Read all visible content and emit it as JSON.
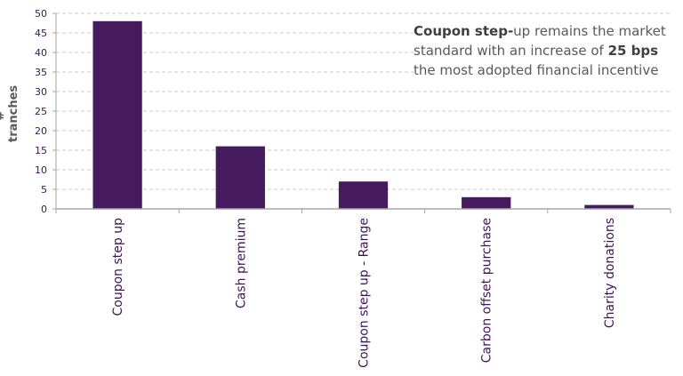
{
  "chart_data": {
    "type": "bar",
    "title": "",
    "xlabel": "",
    "ylabel": "# tranches",
    "categories": [
      "Coupon step up",
      "Cash premium",
      "Coupon step up - Range",
      "Carbon offset purchase",
      "Charity donations"
    ],
    "values": [
      48,
      16,
      7,
      3,
      1
    ],
    "ylim": [
      0,
      50
    ],
    "yticks": [
      0,
      5,
      10,
      15,
      20,
      25,
      30,
      35,
      40,
      45,
      50
    ],
    "grid": true,
    "legend": null,
    "bar_color": "#451A5E",
    "annotation": {
      "bold1": "Coupon step-",
      "text1": "up remains the market standard with an increase of ",
      "bold2": "25 bps",
      "text2": " the most adopted financial incentive"
    }
  },
  "colors": {
    "bar": "#451A5E",
    "tick_text": "#3d1454",
    "grid": "#c8c8c8",
    "axis": "#a6a6a6",
    "annotation": "#595959"
  }
}
